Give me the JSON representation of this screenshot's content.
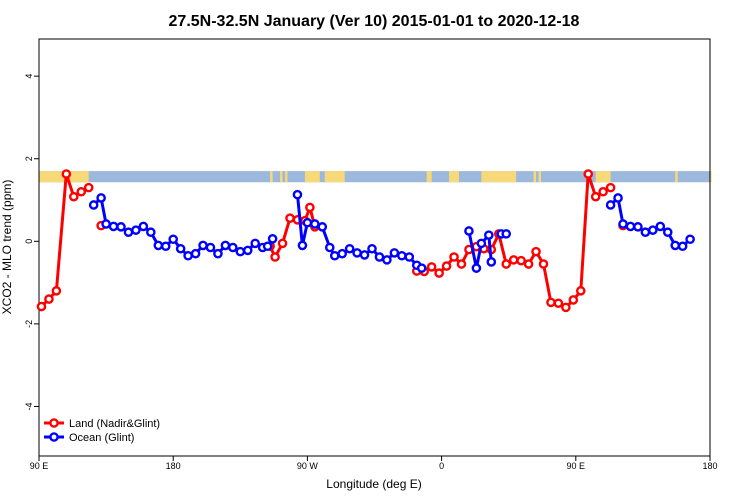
{
  "chart_data": {
    "type": "line",
    "title": "27.5N-32.5N January (Ver 10)   2015-01-01 to 2020-12-18",
    "xlabel": "Longitude (deg E)",
    "ylabel": "XCO2 - MLO trend (ppm)",
    "xlim": [
      -90,
      180
    ],
    "ylim": [
      -5.2,
      4.9
    ],
    "x_ticks": [
      {
        "value": -90,
        "label": "90 E"
      },
      {
        "value": -36,
        "label": "180"
      },
      {
        "value": 18,
        "label": "90 W"
      },
      {
        "value": 72,
        "label": "0"
      },
      {
        "value": 126,
        "label": "90 E"
      },
      {
        "value": 180,
        "label": "180"
      }
    ],
    "y_ticks": [
      -4,
      -2,
      0,
      2,
      4
    ],
    "grid": false,
    "legend_position": "bottom-left",
    "band": {
      "y_range": [
        1.43,
        1.7
      ],
      "ocean_color": "#9cb8dc",
      "land_color": "#f8d97a",
      "land_x_ranges": [
        [
          -90,
          -70
        ],
        [
          3,
          4
        ],
        [
          7,
          8
        ],
        [
          9,
          10
        ],
        [
          17,
          23
        ],
        [
          25,
          33
        ],
        [
          66,
          68
        ],
        [
          75,
          79
        ],
        [
          88,
          102
        ],
        [
          109,
          110
        ],
        [
          111,
          112
        ],
        [
          134,
          140
        ],
        [
          166,
          167
        ],
        [
          180,
          180
        ]
      ]
    },
    "series": [
      {
        "name": "Land (Nadir&Glint)",
        "color": "#ff0000",
        "segments": [
          [
            [
              -89,
              -1.58
            ],
            [
              -86,
              -1.4
            ],
            [
              -83,
              -1.2
            ],
            [
              -79,
              1.63
            ],
            [
              -76,
              1.08
            ],
            [
              -73,
              1.2
            ],
            [
              -70,
              1.3
            ]
          ],
          [
            [
              -65,
              0.38
            ]
          ],
          [
            [
              3,
              -0.12
            ],
            [
              5,
              -0.38
            ],
            [
              8,
              -0.05
            ],
            [
              11,
              0.56
            ],
            [
              14,
              0.52
            ],
            [
              17,
              0.5
            ],
            [
              19,
              0.82
            ],
            [
              21,
              0.35
            ]
          ],
          [
            [
              62,
              -0.72
            ],
            [
              65,
              -0.73
            ],
            [
              68,
              -0.62
            ],
            [
              71,
              -0.77
            ],
            [
              74,
              -0.6
            ],
            [
              77,
              -0.38
            ],
            [
              80,
              -0.55
            ],
            [
              83,
              -0.2
            ],
            [
              86,
              -0.13
            ],
            [
              89,
              -0.18
            ],
            [
              92,
              -0.2
            ],
            [
              95,
              0.18
            ],
            [
              98,
              -0.55
            ],
            [
              101,
              -0.45
            ],
            [
              104,
              -0.47
            ],
            [
              107,
              -0.55
            ],
            [
              110,
              -0.25
            ],
            [
              113,
              -0.55
            ],
            [
              116,
              -1.48
            ],
            [
              119,
              -1.5
            ],
            [
              122,
              -1.6
            ],
            [
              125,
              -1.42
            ],
            [
              128,
              -1.2
            ],
            [
              131,
              1.63
            ],
            [
              134,
              1.08
            ],
            [
              137,
              1.2
            ],
            [
              140,
              1.3
            ]
          ],
          [
            [
              145,
              0.38
            ]
          ]
        ]
      },
      {
        "name": "Ocean (Glint)",
        "color": "#0000ff",
        "segments": [
          [
            [
              -68,
              0.88
            ],
            [
              -65,
              1.05
            ],
            [
              -63,
              0.42
            ],
            [
              -60,
              0.36
            ],
            [
              -57,
              0.35
            ],
            [
              -54,
              0.22
            ],
            [
              -51,
              0.27
            ],
            [
              -48,
              0.36
            ],
            [
              -45,
              0.22
            ],
            [
              -42,
              -0.1
            ],
            [
              -39,
              -0.12
            ],
            [
              -36,
              0.05
            ],
            [
              -33,
              -0.18
            ],
            [
              -30,
              -0.35
            ],
            [
              -27,
              -0.3
            ],
            [
              -24,
              -0.1
            ],
            [
              -21,
              -0.15
            ],
            [
              -18,
              -0.3
            ],
            [
              -15,
              -0.1
            ],
            [
              -12,
              -0.15
            ],
            [
              -9,
              -0.25
            ],
            [
              -6,
              -0.22
            ],
            [
              -3,
              -0.05
            ],
            [
              0,
              -0.15
            ],
            [
              2,
              -0.12
            ],
            [
              4,
              0.06
            ]
          ],
          [
            [
              14,
              1.13
            ],
            [
              16,
              -0.1
            ],
            [
              18,
              0.45
            ],
            [
              21,
              0.42
            ],
            [
              24,
              0.35
            ],
            [
              27,
              -0.15
            ],
            [
              29,
              -0.35
            ],
            [
              32,
              -0.3
            ],
            [
              35,
              -0.18
            ],
            [
              38,
              -0.28
            ],
            [
              41,
              -0.33
            ],
            [
              44,
              -0.18
            ],
            [
              47,
              -0.38
            ],
            [
              50,
              -0.45
            ],
            [
              53,
              -0.28
            ],
            [
              56,
              -0.35
            ],
            [
              59,
              -0.38
            ],
            [
              62,
              -0.58
            ],
            [
              64,
              -0.65
            ]
          ],
          [
            [
              83,
              0.25
            ],
            [
              86,
              -0.65
            ],
            [
              88,
              -0.05
            ],
            [
              91,
              0.15
            ],
            [
              92,
              -0.5
            ]
          ],
          [
            [
              96,
              0.18
            ],
            [
              98,
              0.18
            ]
          ],
          [
            [
              140,
              0.88
            ],
            [
              143,
              1.05
            ],
            [
              145,
              0.42
            ],
            [
              148,
              0.36
            ],
            [
              151,
              0.35
            ],
            [
              154,
              0.22
            ],
            [
              157,
              0.27
            ],
            [
              160,
              0.36
            ],
            [
              163,
              0.22
            ],
            [
              166,
              -0.1
            ],
            [
              169,
              -0.12
            ],
            [
              172,
              0.05
            ]
          ]
        ]
      }
    ]
  }
}
